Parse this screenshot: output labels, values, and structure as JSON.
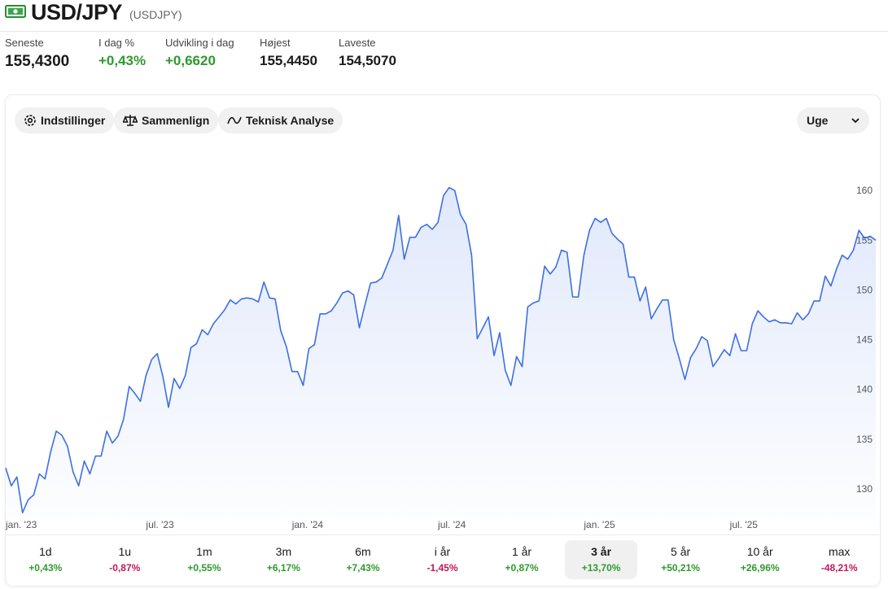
{
  "header": {
    "title": "USD/JPY",
    "symbol": "(USDJPY)"
  },
  "stats": [
    {
      "label": "Seneste",
      "value": "155,4300"
    },
    {
      "label": "I dag %",
      "value": "+0,43%"
    },
    {
      "label": "Udvikling i dag",
      "value": "+0,6620"
    },
    {
      "label": "Højest",
      "value": "155,4450"
    },
    {
      "label": "Laveste",
      "value": "154,5070"
    }
  ],
  "toolbar": {
    "buttons": [
      "Indstillinger",
      "Sammenlign",
      "Teknisk Analyse"
    ],
    "interval": "Uge"
  },
  "chart_data": {
    "type": "line",
    "color": "#3d6fe3",
    "categories": [
      "jan. '23",
      null,
      null,
      null,
      null,
      null,
      null,
      null,
      null,
      null,
      null,
      null,
      null,
      null,
      null,
      null,
      null,
      null,
      null,
      null,
      null,
      null,
      null,
      null,
      null,
      "jul. '23",
      null,
      null,
      null,
      null,
      null,
      null,
      null,
      null,
      null,
      null,
      null,
      null,
      null,
      null,
      null,
      null,
      null,
      null,
      null,
      null,
      null,
      null,
      null,
      null,
      null,
      "jan. '24",
      null,
      null,
      null,
      null,
      null,
      null,
      null,
      null,
      null,
      null,
      null,
      null,
      null,
      null,
      null,
      null,
      null,
      null,
      null,
      null,
      null,
      null,
      null,
      null,
      null,
      "jul. '24",
      null,
      null,
      null,
      null,
      null,
      null,
      null,
      null,
      null,
      null,
      null,
      null,
      null,
      null,
      null,
      null,
      null,
      null,
      null,
      null,
      null,
      null,
      null,
      null,
      null,
      "jan. '25",
      null,
      null,
      null,
      null,
      null,
      null,
      null,
      null,
      null,
      null,
      null,
      null,
      null,
      null,
      null,
      null,
      null,
      null,
      null,
      null,
      null,
      null,
      null,
      null,
      null,
      "jul. '25",
      null,
      null,
      null,
      null,
      null,
      null,
      null,
      null,
      null,
      null,
      null,
      null,
      null,
      null,
      null,
      null,
      null,
      null,
      null,
      null,
      null,
      null,
      null,
      null,
      null,
      null
    ],
    "values": [
      132.1,
      130.3,
      131.2,
      127.6,
      128.9,
      129.4,
      131.5,
      131.0,
      133.7,
      135.8,
      135.4,
      134.3,
      131.7,
      130.3,
      132.8,
      131.5,
      133.3,
      133.3,
      135.8,
      134.6,
      135.3,
      137.0,
      140.3,
      139.6,
      138.8,
      141.4,
      143.0,
      143.6,
      141.3,
      138.2,
      141.1,
      140.1,
      141.4,
      144.2,
      144.6,
      146.0,
      145.5,
      146.6,
      147.3,
      148.0,
      149.0,
      148.6,
      149.1,
      149.2,
      149.1,
      148.8,
      150.8,
      149.2,
      149.1,
      145.9,
      144.3,
      141.8,
      141.8,
      140.4,
      144.1,
      144.5,
      147.6,
      147.6,
      147.9,
      148.7,
      149.7,
      149.9,
      149.5,
      146.2,
      148.5,
      150.7,
      150.8,
      151.2,
      152.6,
      154.0,
      157.5,
      153.1,
      155.3,
      155.3,
      156.3,
      156.6,
      156.1,
      156.8,
      159.5,
      160.3,
      160.0,
      157.6,
      156.6,
      153.5,
      145.1,
      146.2,
      147.3,
      143.4,
      145.7,
      141.9,
      140.4,
      143.3,
      142.3,
      148.3,
      148.7,
      148.9,
      152.4,
      151.6,
      152.3,
      154.0,
      153.8,
      149.3,
      149.3,
      153.5,
      156.0,
      157.2,
      156.8,
      157.2,
      155.7,
      155.1,
      154.6,
      151.3,
      151.3,
      148.9,
      150.3,
      147.1,
      148.1,
      149.0,
      149.0,
      145.0,
      143.1,
      141.0,
      143.2,
      144.1,
      145.3,
      144.9,
      142.3,
      143.1,
      144.0,
      143.4,
      145.6,
      143.9,
      143.9,
      146.6,
      147.9,
      147.3,
      146.8,
      147.0,
      146.7,
      146.7,
      146.6,
      147.7,
      147.0,
      147.6,
      148.9,
      148.9,
      151.4,
      150.4,
      152.1,
      153.5,
      153.1,
      154.0,
      156.0,
      155.2,
      155.4,
      155.0
    ],
    "ylim": [
      126.8,
      162.8
    ],
    "yticks": [
      130,
      135,
      140,
      145,
      150,
      155,
      160
    ],
    "grid": false
  },
  "periods": [
    {
      "label": "1d",
      "change": "+0,43%"
    },
    {
      "label": "1u",
      "change": "-0,87%"
    },
    {
      "label": "1m",
      "change": "+0,55%"
    },
    {
      "label": "3m",
      "change": "+6,17%"
    },
    {
      "label": "6m",
      "change": "+7,43%"
    },
    {
      "label": "i år",
      "change": "-1,45%"
    },
    {
      "label": "1 år",
      "change": "+0,87%"
    },
    {
      "label": "3 år",
      "change": "+13,70%"
    },
    {
      "label": "5 år",
      "change": "+50,21%"
    },
    {
      "label": "10 år",
      "change": "+26,96%"
    },
    {
      "label": "max",
      "change": "-48,21%"
    }
  ],
  "selected_period": "3 år"
}
